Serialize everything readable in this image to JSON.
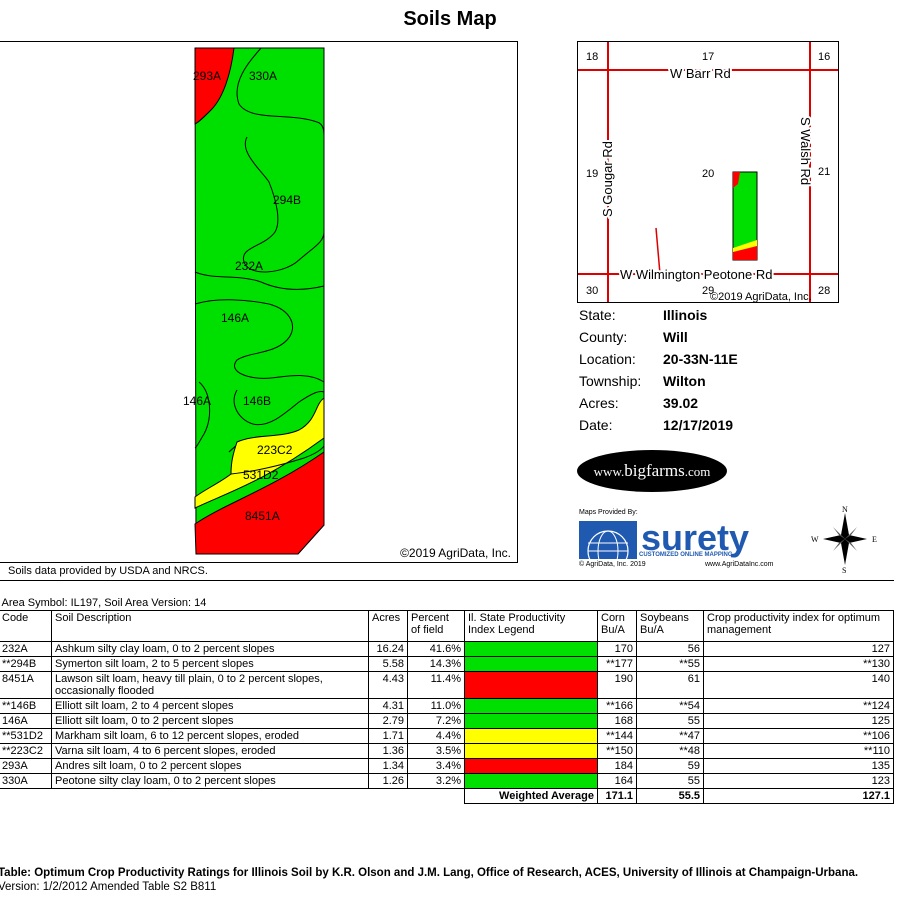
{
  "title": "Soils Map",
  "main_map": {
    "copyright": "©2019 AgriData, Inc.",
    "soil_labels": [
      "293A",
      "330A",
      "294B",
      "232A",
      "146A",
      "146A",
      "146B",
      "223C2",
      "531D2",
      "8451A"
    ],
    "colors": {
      "green": "#00e000",
      "red": "#ff0000",
      "yellow": "#ffff00"
    }
  },
  "source_note": "Soils data provided by USDA and NRCS.",
  "locator_map": {
    "sections": [
      "18",
      "17",
      "16",
      "19",
      "20",
      "21",
      "30",
      "29",
      "28"
    ],
    "roads": [
      "W Barr Rd",
      "S Gougar Rd",
      "S Walsh Rd",
      "W Wilmington Peotone Rd"
    ],
    "copyright": "©2019 AgriData, Inc."
  },
  "info": [
    {
      "label": "State:",
      "value": "Illinois"
    },
    {
      "label": "County:",
      "value": "Will"
    },
    {
      "label": "Location:",
      "value": "20-33N-11E"
    },
    {
      "label": "Township:",
      "value": "Wilton"
    },
    {
      "label": "Acres:",
      "value": "39.02"
    },
    {
      "label": "Date:",
      "value": "12/17/2019"
    }
  ],
  "bigfarms": {
    "prefix": "www.",
    "brand": "bigfarms",
    "suffix": ".com"
  },
  "surety": {
    "provided_by": "Maps Provided By:",
    "brand": "surety",
    "tagline": "CUSTOMIZED ONLINE MAPPING",
    "copyright": "© AgriData, Inc. 2019",
    "url": "www.AgriDataInc.com"
  },
  "compass": {
    "n": "N",
    "s": "S",
    "e": "E",
    "w": "W"
  },
  "table": {
    "area_symbol": "Area Symbol: IL197, Soil Area Version: 14",
    "headers": [
      "Code",
      "Soil Description",
      "Acres",
      "Percent of field",
      "Il. State Productivity Index Legend",
      "Corn Bu/A",
      "Soybeans Bu/A",
      "Crop productivity index for optimum management"
    ],
    "rows": [
      {
        "code": "232A",
        "desc": "Ashkum silty clay loam, 0 to 2 percent slopes",
        "acres": "16.24",
        "pct": "41.6%",
        "legend": "#00e000",
        "corn": "170",
        "soy": "56",
        "cpi": "127"
      },
      {
        "code": "**294B",
        "desc": "Symerton silt loam, 2 to 5 percent slopes",
        "acres": "5.58",
        "pct": "14.3%",
        "legend": "#00e000",
        "corn": "**177",
        "soy": "**55",
        "cpi": "**130"
      },
      {
        "code": "8451A",
        "desc": "Lawson silt loam, heavy till plain, 0 to 2 percent slopes, occasionally flooded",
        "acres": "4.43",
        "pct": "11.4%",
        "legend": "#ff0000",
        "corn": "190",
        "soy": "61",
        "cpi": "140"
      },
      {
        "code": "**146B",
        "desc": "Elliott silt loam, 2 to 4 percent slopes",
        "acres": "4.31",
        "pct": "11.0%",
        "legend": "#00e000",
        "corn": "**166",
        "soy": "**54",
        "cpi": "**124"
      },
      {
        "code": "146A",
        "desc": "Elliott silt loam, 0 to 2 percent slopes",
        "acres": "2.79",
        "pct": "7.2%",
        "legend": "#00e000",
        "corn": "168",
        "soy": "55",
        "cpi": "125"
      },
      {
        "code": "**531D2",
        "desc": "Markham silt loam, 6 to 12 percent slopes, eroded",
        "acres": "1.71",
        "pct": "4.4%",
        "legend": "#ffff00",
        "corn": "**144",
        "soy": "**47",
        "cpi": "**106"
      },
      {
        "code": "**223C2",
        "desc": "Varna silt loam, 4 to 6 percent slopes, eroded",
        "acres": "1.36",
        "pct": "3.5%",
        "legend": "#ffff00",
        "corn": "**150",
        "soy": "**48",
        "cpi": "**110"
      },
      {
        "code": "293A",
        "desc": "Andres silt loam, 0 to 2 percent slopes",
        "acres": "1.34",
        "pct": "3.4%",
        "legend": "#ff0000",
        "corn": "184",
        "soy": "59",
        "cpi": "135"
      },
      {
        "code": "330A",
        "desc": "Peotone silty clay loam, 0 to 2 percent slopes",
        "acres": "1.26",
        "pct": "3.2%",
        "legend": "#00e000",
        "corn": "164",
        "soy": "55",
        "cpi": "123"
      }
    ],
    "weighted": {
      "label": "Weighted Average",
      "corn": "171.1",
      "soy": "55.5",
      "cpi": "127.1"
    }
  },
  "footnote": {
    "text": "Table: Optimum Crop Productivity Ratings for Illinois Soil by K.R. Olson and J.M. Lang, Office of Research, ACES, University of Illinois at Champaign-Urbana.",
    "version": " Version: 1/2/2012 Amended Table S2 B811"
  }
}
